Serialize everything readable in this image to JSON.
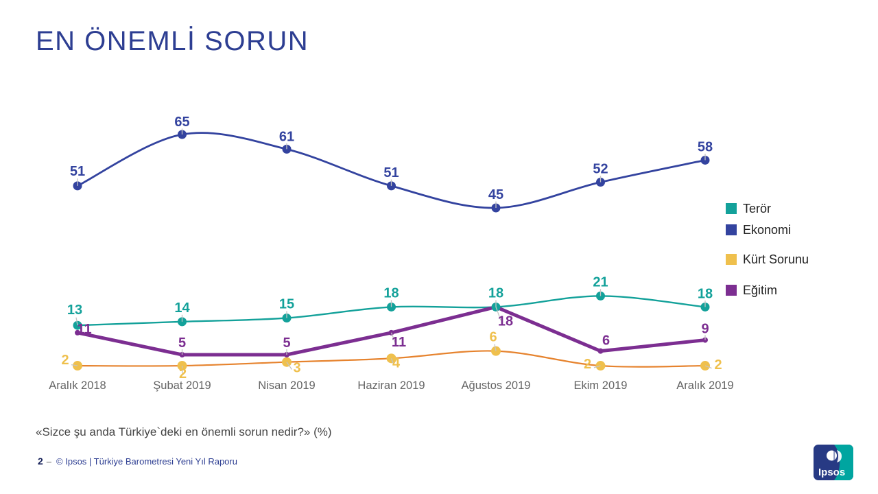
{
  "slide": {
    "question": "«Sizce şu anda Türkiye`deki en önemli sorun nedir?» (%)",
    "footer": {
      "page_number": "2",
      "separator": "–",
      "copyright": "© Ipsos | Türkiye Barometresi Yeni Yıl Raporu"
    },
    "logo_text": "Ipsos"
  },
  "colors": {
    "title": "#2D3E92",
    "axis_label": "#646464",
    "question_text": "#454545",
    "page_number": "#17225A",
    "footer_separator": "#555555",
    "copyright": "#2D3E92",
    "leader_line": "#C4C4C4",
    "logo_blue": "#273A84",
    "logo_teal": "#00A5A0"
  },
  "chart_data": {
    "type": "line",
    "title": "EN ÖNEMLİ SORUN",
    "unit": "%",
    "categories": [
      "Aralık 2018",
      "Şubat 2019",
      "Nisan 2019",
      "Haziran 2019",
      "Ağustos 2019",
      "Ekim 2019",
      "Aralık 2019"
    ],
    "series": [
      {
        "name": "Terör",
        "values": [
          13,
          14,
          15,
          18,
          18,
          21,
          18
        ],
        "color": "#13A19A",
        "marker_color": "#13A19A",
        "smooth": true,
        "marker_r": 6.5,
        "line_width": 2.4
      },
      {
        "name": "Ekonomi",
        "values": [
          51,
          65,
          61,
          51,
          45,
          52,
          58
        ],
        "color": "#33439F",
        "marker_color": "#33439F",
        "smooth": true,
        "marker_r": 6.5,
        "line_width": 2.8
      },
      {
        "name": "Kürt Sorunu",
        "values": [
          2,
          2,
          3,
          4,
          6,
          2,
          2
        ],
        "color": "#E6832E",
        "marker_color": "#EFC04D",
        "label_color": "#EFC04D",
        "smooth": true,
        "marker_r": 7,
        "line_width": 2.2
      },
      {
        "name": "Eğitim",
        "values": [
          11,
          5,
          5,
          11,
          18,
          6,
          9
        ],
        "color": "#7C2E91",
        "marker_color": "#7C2E91",
        "smooth": false,
        "marker_r": 4,
        "line_width": 5
      }
    ],
    "ylim": [
      0,
      70
    ],
    "grid": false,
    "legend_position": "right",
    "layout": {
      "x0": 113,
      "dx": 152.5,
      "y_base": 543.75,
      "y_scale": 5.35,
      "axis_label_y": 567,
      "line_order": [
        2,
        1,
        0,
        3
      ],
      "marker_order": [
        1,
        2,
        3,
        0
      ],
      "leader_color": "#C4C4C4",
      "label_offsets": [
        [
          [
            -4,
            -16
          ],
          [
            0,
            -14
          ],
          [
            0,
            -14
          ],
          [
            0,
            -14
          ],
          [
            0,
            -14
          ],
          [
            0,
            -14
          ],
          [
            0,
            -13
          ]
        ],
        [
          [
            0,
            -15
          ],
          [
            0,
            -12
          ],
          [
            0,
            -12
          ],
          [
            0,
            -13
          ],
          [
            0,
            -13
          ],
          [
            0,
            -13
          ],
          [
            0,
            -13
          ]
        ],
        [
          [
            -18,
            -2
          ],
          [
            1,
            18
          ],
          [
            15,
            15
          ],
          [
            7,
            13
          ],
          [
            -4,
            -14
          ],
          [
            -19,
            4
          ],
          [
            19,
            5
          ]
        ],
        [
          [
            10,
            1
          ],
          [
            0,
            -11
          ],
          [
            0,
            -11
          ],
          [
            11,
            20
          ],
          [
            14,
            27
          ],
          [
            8,
            -9
          ],
          [
            0,
            -10
          ]
        ]
      ]
    }
  }
}
